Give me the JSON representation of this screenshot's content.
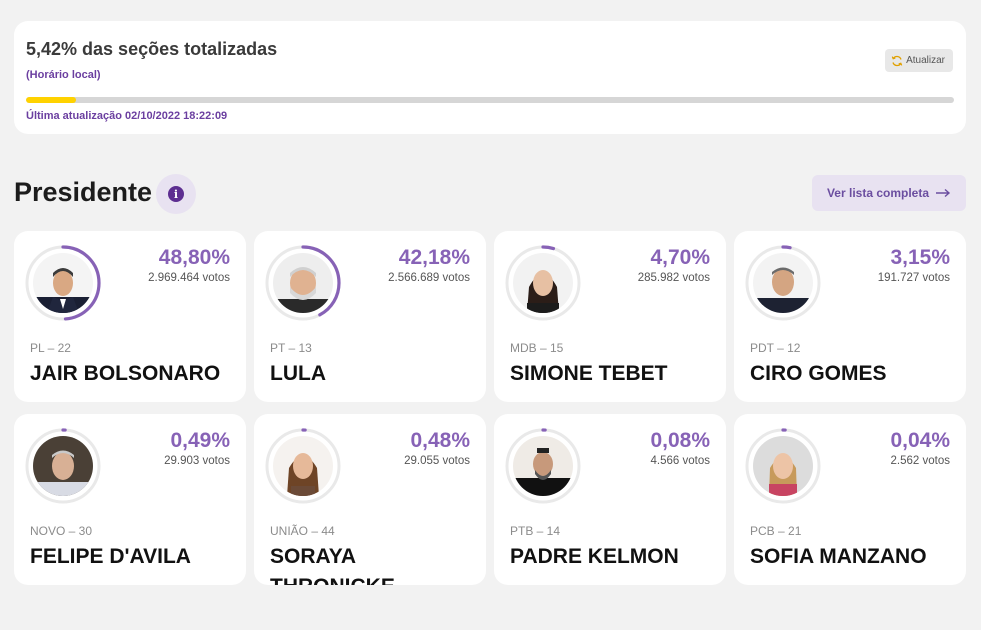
{
  "status": {
    "title": "5,42% das seções totalizadas",
    "subtitle": "(Horário local)",
    "refresh_label": "Atualizar",
    "progress_fraction": 0.0542,
    "progress_color": "#ffd200",
    "last_update": "Última atualização 02/10/2022 18:22:09"
  },
  "section": {
    "title": "Presidente",
    "info_icon": "info-icon",
    "list_button_label": "Ver lista completa",
    "list_button_icon": "arrow-right-icon"
  },
  "colors": {
    "accent": "#8762b6",
    "ring_track": "#e9e9e9",
    "purple_text": "#6b3fa0"
  },
  "candidates": [
    {
      "pct": "48,80%",
      "votes": "2.969.464 votos",
      "party": "PL – 22",
      "name": "JAIR BOLSONARO",
      "share": 0.488
    },
    {
      "pct": "42,18%",
      "votes": "2.566.689 votos",
      "party": "PT – 13",
      "name": "LULA",
      "share": 0.4218
    },
    {
      "pct": "4,70%",
      "votes": "285.982 votos",
      "party": "MDB – 15",
      "name": "SIMONE TEBET",
      "share": 0.047
    },
    {
      "pct": "3,15%",
      "votes": "191.727 votos",
      "party": "PDT – 12",
      "name": "CIRO GOMES",
      "share": 0.0315
    },
    {
      "pct": "0,49%",
      "votes": "29.903 votos",
      "party": "NOVO – 30",
      "name": "FELIPE D'AVILA",
      "share": 0.0049
    },
    {
      "pct": "0,48%",
      "votes": "29.055 votos",
      "party": "UNIÃO – 44",
      "name": "SORAYA THRONICKE",
      "share": 0.0048
    },
    {
      "pct": "0,08%",
      "votes": "4.566 votos",
      "party": "PTB – 14",
      "name": "PADRE KELMON",
      "share": 0.0008
    },
    {
      "pct": "0,04%",
      "votes": "2.562 votos",
      "party": "PCB – 21",
      "name": "SOFIA MANZANO",
      "share": 0.0004
    }
  ]
}
